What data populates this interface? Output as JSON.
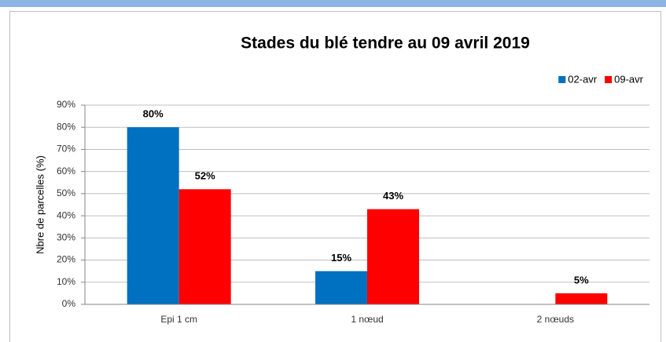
{
  "chart_data": {
    "type": "bar",
    "title": "Stades du blé tendre au 09 avril 2019",
    "y_label": "Nbre de parcelles (%)",
    "categories": [
      "Epi 1 cm",
      "1 nœud",
      "2 nœuds"
    ],
    "series": [
      {
        "name": "02-avr",
        "color": "#0070c0",
        "values": [
          80,
          15,
          null
        ],
        "value_labels": [
          "80%",
          "15%",
          null
        ]
      },
      {
        "name": "09-avr",
        "color": "#ff0000",
        "values": [
          52,
          43,
          5
        ],
        "value_labels": [
          "52%",
          "43%",
          "5%"
        ]
      }
    ],
    "ylim": [
      0,
      90
    ],
    "yticks": [
      {
        "value": 0,
        "label": "0%"
      },
      {
        "value": 10,
        "label": "10%"
      },
      {
        "value": 20,
        "label": "20%"
      },
      {
        "value": 30,
        "label": "30%"
      },
      {
        "value": 40,
        "label": "40%"
      },
      {
        "value": 50,
        "label": "50%"
      },
      {
        "value": 60,
        "label": "60%"
      },
      {
        "value": 70,
        "label": "70%"
      },
      {
        "value": 80,
        "label": "80%"
      },
      {
        "value": 90,
        "label": "90%"
      }
    ],
    "grid": true,
    "legend": "top-right"
  }
}
